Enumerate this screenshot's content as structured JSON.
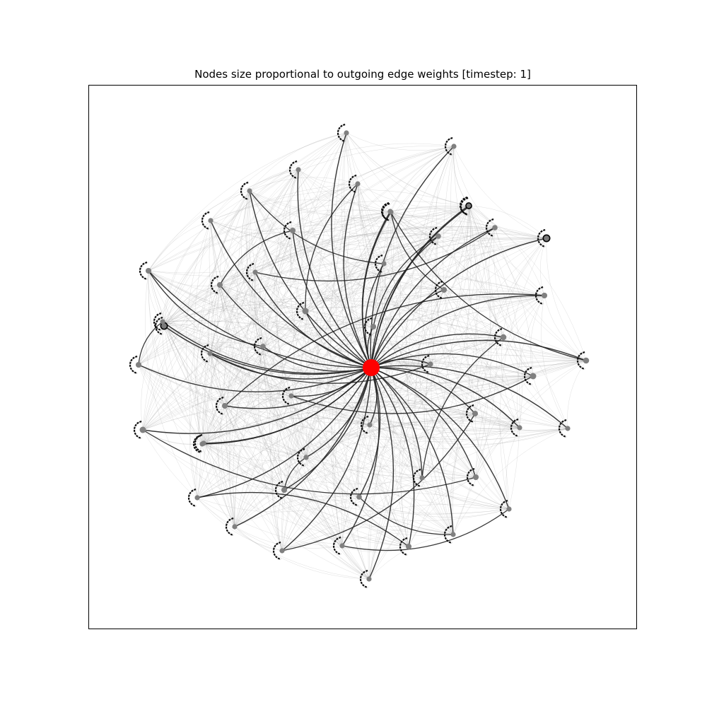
{
  "title": "Nodes size proportional to outgoing edge weights [timestep: 1]",
  "colors": {
    "hub": "#ff0000",
    "node": "#808080",
    "strong_edge": "#222222",
    "weak_edge": "#9a9a9a",
    "frame": "#000000"
  },
  "hub": {
    "id": "hub",
    "size": 1.0
  },
  "nodes": [
    {
      "id": "n01",
      "size": 0.35
    },
    {
      "id": "n02",
      "size": 0.35
    },
    {
      "id": "n03",
      "size": 0.35
    },
    {
      "id": "n04",
      "size": 0.35
    },
    {
      "id": "n05",
      "size": 0.35
    },
    {
      "id": "n06",
      "size": 0.35
    },
    {
      "id": "n07",
      "size": 0.35
    },
    {
      "id": "n08",
      "size": 0.35
    },
    {
      "id": "n09",
      "size": 0.4
    },
    {
      "id": "n10",
      "size": 0.45
    },
    {
      "id": "n11",
      "size": 0.4
    },
    {
      "id": "n12",
      "size": 0.6,
      "ringed": true
    },
    {
      "id": "n13",
      "size": 0.35
    },
    {
      "id": "n14",
      "size": 0.35
    },
    {
      "id": "n15",
      "size": 0.45
    },
    {
      "id": "n16",
      "size": 0.45
    },
    {
      "id": "n17",
      "size": 0.45
    },
    {
      "id": "n18",
      "size": 0.55
    },
    {
      "id": "n19",
      "size": 0.45
    },
    {
      "id": "n20",
      "size": 0.45
    },
    {
      "id": "n21",
      "size": 0.6,
      "ringed": true
    },
    {
      "id": "n22",
      "size": 0.5
    },
    {
      "id": "n23",
      "size": 0.4
    },
    {
      "id": "n24",
      "size": 0.35
    },
    {
      "id": "n25",
      "size": 0.45
    },
    {
      "id": "n26",
      "size": 0.35
    },
    {
      "id": "n27",
      "size": 0.5
    },
    {
      "id": "n28",
      "size": 0.55
    },
    {
      "id": "n29",
      "size": 0.35
    },
    {
      "id": "n30",
      "size": 0.45
    },
    {
      "id": "n31",
      "size": 0.35
    },
    {
      "id": "n32",
      "size": 0.45
    },
    {
      "id": "n33",
      "size": 0.35
    },
    {
      "id": "n34",
      "size": 0.35
    },
    {
      "id": "n35",
      "size": 0.55
    },
    {
      "id": "n36",
      "size": 0.35
    },
    {
      "id": "n37",
      "size": 0.35
    },
    {
      "id": "n38",
      "size": 0.35
    },
    {
      "id": "n39",
      "size": 0.45
    },
    {
      "id": "n40",
      "size": 0.45
    },
    {
      "id": "n41",
      "size": 0.35
    },
    {
      "id": "n42",
      "size": 0.4
    },
    {
      "id": "n43",
      "size": 0.35
    },
    {
      "id": "n44",
      "size": 0.35
    },
    {
      "id": "n45",
      "size": 0.35
    },
    {
      "id": "n46",
      "size": 0.35
    },
    {
      "id": "n47",
      "size": 0.45
    },
    {
      "id": "n48",
      "size": 0.35
    },
    {
      "id": "n49",
      "size": 0.35
    },
    {
      "id": "n50",
      "size": 0.35
    },
    {
      "id": "n51",
      "size": 0.35
    },
    {
      "id": "n52",
      "size": 0.35
    },
    {
      "id": "n53",
      "size": 0.45,
      "ringed": true
    }
  ],
  "strong_edges_to_hub": [
    "n01",
    "n02",
    "n03",
    "n04",
    "n05",
    "n06",
    "n07",
    "n08",
    "n09",
    "n10",
    "n11",
    "n12",
    "n13",
    "n14",
    "n15",
    "n16",
    "n17",
    "n18",
    "n19",
    "n20",
    "n21",
    "n22",
    "n23",
    "n24",
    "n25",
    "n26",
    "n27",
    "n28",
    "n29",
    "n30",
    "n31",
    "n32",
    "n33",
    "n34",
    "n35",
    "n36",
    "n37",
    "n38",
    "n39",
    "n40",
    "n41",
    "n42",
    "n43",
    "n44",
    "n45",
    "n46",
    "n47",
    "n48",
    "n49",
    "n50",
    "n51",
    "n52",
    "n53"
  ],
  "strong_edges_between": [
    [
      "n04",
      "n18"
    ],
    [
      "n05",
      "n13"
    ],
    [
      "n10",
      "n16"
    ],
    [
      "n14",
      "n11"
    ],
    [
      "n15",
      "n23"
    ],
    [
      "n24",
      "n26"
    ],
    [
      "n22",
      "n38"
    ],
    [
      "n42",
      "n45"
    ],
    [
      "n35",
      "n39"
    ],
    [
      "n46",
      "n43"
    ],
    [
      "n47",
      "n41"
    ],
    [
      "n51",
      "n36"
    ],
    [
      "n29",
      "n28"
    ],
    [
      "n09",
      "n20"
    ],
    [
      "n06",
      "n17"
    ],
    [
      "n19",
      "n30"
    ],
    [
      "n37",
      "n40"
    ],
    [
      "n48",
      "n32"
    ],
    [
      "n50",
      "n25"
    ],
    [
      "n52",
      "n27"
    ]
  ]
}
